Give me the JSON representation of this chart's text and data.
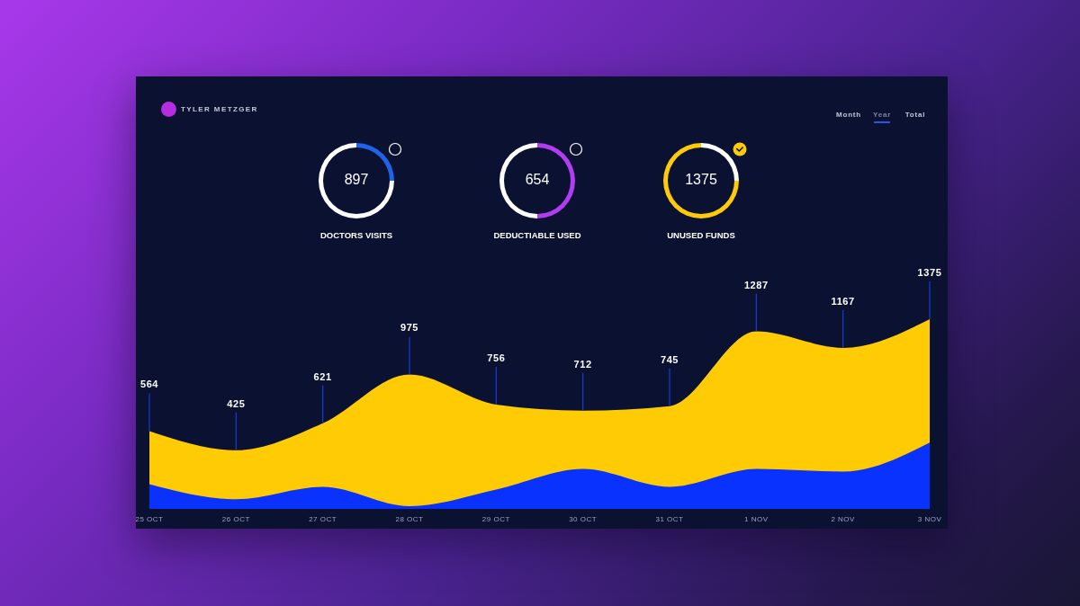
{
  "chart_data": [
    {
      "type": "other",
      "title": "TYLER METZGER",
      "annotations": [
        "Month",
        "Year",
        "Total"
      ]
    },
    {
      "type": "donut",
      "title": "DOCTORS VISITS",
      "categories": [
        null,
        null
      ],
      "values": [
        25,
        75
      ],
      "colors": [
        "#1f63e8",
        "#ffffff"
      ],
      "annotations": [
        "897"
      ]
    },
    {
      "type": "donut",
      "title": "DEDUCTIABLE USED",
      "categories": [
        null,
        null
      ],
      "values": [
        50,
        50
      ],
      "colors": [
        "#b23cf0",
        "#ffffff"
      ],
      "annotations": [
        "654"
      ]
    },
    {
      "type": "donut",
      "title": "UNUSED FUNDS",
      "categories": [
        null,
        null
      ],
      "values": [
        25,
        75
      ],
      "colors": [
        "#ffffff",
        "#ffcb08"
      ],
      "annotations": [
        "1375"
      ]
    },
    {
      "type": "area",
      "categories": [
        "25 OCT",
        "26 OCT",
        "27 OCT",
        "28 OCT",
        "29 OCT",
        "30 OCT",
        "31 OCT",
        "1 NOV",
        "2 NOV",
        "3 NOV"
      ],
      "series": [
        {
          "color": "#ffcb05",
          "values": [
            564,
            425,
            621,
            975,
            756,
            712,
            745,
            1287,
            1167,
            1375
          ],
          "value_labels": [
            "564",
            "425",
            "621",
            "975",
            "756",
            "712",
            "745",
            "1287",
            "1167",
            "1375"
          ]
        },
        {
          "color": "#0a32ff",
          "values": [
            180,
            70,
            160,
            20,
            140,
            290,
            160,
            290,
            270,
            480
          ]
        }
      ],
      "tick_labels": "x"
    }
  ]
}
